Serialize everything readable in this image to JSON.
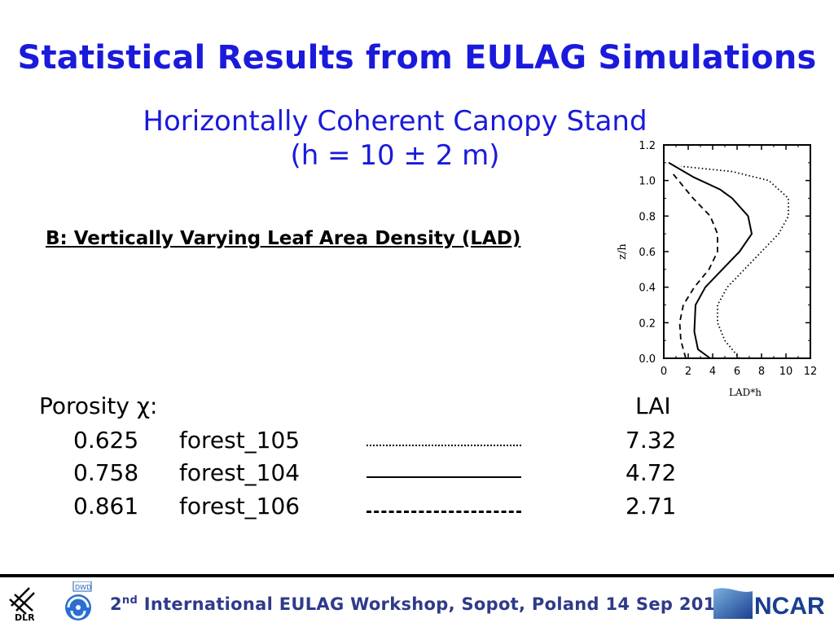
{
  "slide": {
    "title": "Statistical Results from EULAG Simulations",
    "subtitle_line1": "Horizontally Coherent Canopy Stand",
    "subtitle_line2": "(h = 10 ± 2 m)",
    "section_heading": "B: Vertically Varying Leaf Area Density (LAD)"
  },
  "legend": {
    "porosity_heading": "Porosity χ:",
    "lai_heading": "LAI",
    "rows": [
      {
        "porosity": "0.625",
        "name": "forest_105",
        "line_style": "dotted",
        "lai": "7.32"
      },
      {
        "porosity": "0.758",
        "name": "forest_104",
        "line_style": "solid",
        "lai": "4.72"
      },
      {
        "porosity": "0.861",
        "name": "forest_106",
        "line_style": "dashed",
        "lai": "2.71"
      }
    ]
  },
  "chart_data": {
    "type": "line",
    "xlabel": "LAD*h",
    "ylabel": "z/h",
    "xlim": [
      0,
      12
    ],
    "ylim": [
      0.0,
      1.2
    ],
    "x_ticks": [
      "0",
      "2",
      "4",
      "6",
      "8",
      "10",
      "12"
    ],
    "y_ticks": [
      "0.0",
      "0.2",
      "0.4",
      "0.6",
      "0.8",
      "1.0",
      "1.2"
    ],
    "series": [
      {
        "line_style": "dotted",
        "x": [
          6.2,
          5.0,
          4.4,
          4.4,
          5.2,
          6.6,
          8.0,
          9.4,
          10.2,
          10.2,
          8.6,
          5.6,
          1.4
        ],
        "y": [
          0.0,
          0.1,
          0.2,
          0.3,
          0.4,
          0.5,
          0.6,
          0.7,
          0.8,
          0.9,
          1.0,
          1.05,
          1.08
        ]
      },
      {
        "line_style": "solid",
        "x": [
          3.8,
          2.8,
          2.5,
          2.6,
          3.4,
          4.8,
          6.2,
          7.2,
          6.9,
          5.6,
          4.6,
          2.4,
          0.4
        ],
        "y": [
          0.0,
          0.05,
          0.15,
          0.3,
          0.4,
          0.5,
          0.6,
          0.7,
          0.8,
          0.9,
          0.95,
          1.02,
          1.1
        ]
      },
      {
        "line_style": "dashed",
        "x": [
          1.8,
          1.4,
          1.3,
          1.6,
          2.5,
          3.7,
          4.4,
          4.4,
          3.8,
          2.4,
          0.6
        ],
        "y": [
          0.0,
          0.1,
          0.2,
          0.3,
          0.4,
          0.5,
          0.6,
          0.7,
          0.8,
          0.9,
          1.05
        ]
      }
    ]
  },
  "footer": {
    "text_prefix": "2",
    "text_sup": "nd",
    "text_rest": " International EULAG Workshop, Sopot, Poland 14 Sep 2010",
    "dlr_logo_text": "DLR",
    "dwd_logo_text": "DWD",
    "ncar_logo_text": "NCAR"
  },
  "colors": {
    "title": "#1a1adb",
    "footer_text": "#2f3a8a",
    "ncar_blue": "#1a3f8f"
  }
}
